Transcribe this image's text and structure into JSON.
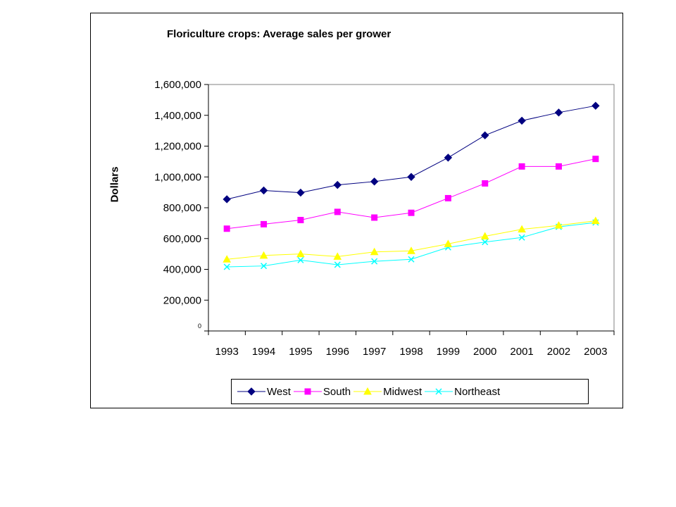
{
  "chart_data": {
    "type": "line",
    "title": "Floriculture crops: Average sales per grower",
    "xlabel": "",
    "ylabel": "Dollars",
    "x": [
      "1993",
      "1994",
      "1995",
      "1996",
      "1997",
      "1998",
      "1999",
      "2000",
      "2001",
      "2002",
      "2003"
    ],
    "ylim": [
      0,
      1600000
    ],
    "yticks": [
      {
        "value": 0,
        "label": "0"
      },
      {
        "value": 200000,
        "label": "200,000"
      },
      {
        "value": 400000,
        "label": "400,000"
      },
      {
        "value": 600000,
        "label": "600,000"
      },
      {
        "value": 800000,
        "label": "800,000"
      },
      {
        "value": 1000000,
        "label": "1,000,000"
      },
      {
        "value": 1200000,
        "label": "1,200,000"
      },
      {
        "value": 1400000,
        "label": "1,400,000"
      },
      {
        "value": 1600000,
        "label": "1,600,000"
      }
    ],
    "grid": false,
    "legend_position": "bottom",
    "series": [
      {
        "name": "West",
        "color": "#000080",
        "marker": "diamond",
        "values": [
          855000,
          912000,
          898000,
          948000,
          970000,
          1000000,
          1125000,
          1270000,
          1365000,
          1418000,
          1462000
        ]
      },
      {
        "name": "South",
        "color": "#ff00ff",
        "marker": "square",
        "values": [
          664000,
          693000,
          720000,
          773000,
          736000,
          767000,
          862000,
          958000,
          1068000,
          1068000,
          1117000
        ]
      },
      {
        "name": "Midwest",
        "color": "#ffff00",
        "marker": "triangle",
        "values": [
          465000,
          490000,
          500000,
          483000,
          513000,
          520000,
          565000,
          615000,
          660000,
          685000,
          715000
        ]
      },
      {
        "name": "Northeast",
        "color": "#00ffff",
        "marker": "x",
        "values": [
          416000,
          422000,
          460000,
          430000,
          452000,
          465000,
          543000,
          577000,
          607000,
          676000,
          704000
        ]
      }
    ]
  }
}
